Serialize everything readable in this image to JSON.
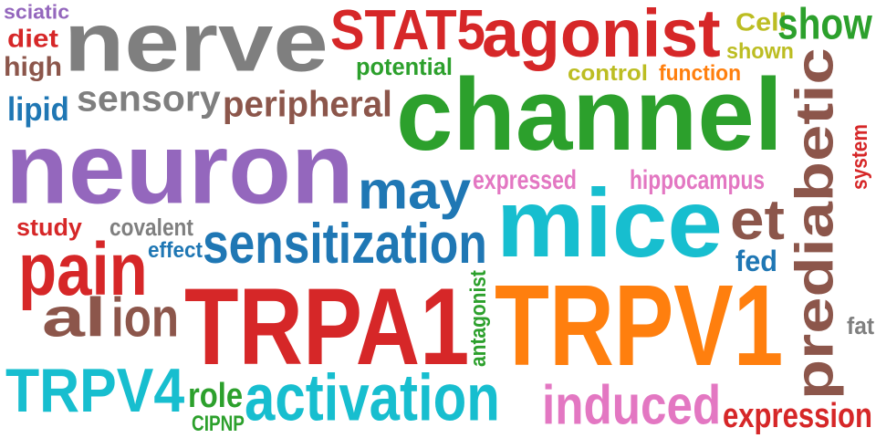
{
  "colors": {
    "red": "#d62728",
    "gray": "#7f7f7f",
    "green": "#2ca02c",
    "purple": "#9467bd",
    "blue": "#1f77b4",
    "cyan": "#17becf",
    "orange": "#ff7f0e",
    "brown": "#8c564b",
    "pink": "#e377c2",
    "olive": "#bcbd22"
  },
  "words": [
    {
      "text": "sciatic",
      "color": "#9467bd"
    },
    {
      "text": "diet",
      "color": "#d62728"
    },
    {
      "text": "high",
      "color": "#8c564b"
    },
    {
      "text": "nerve",
      "color": "#7f7f7f"
    },
    {
      "text": "STAT5",
      "color": "#d62728"
    },
    {
      "text": "agonist",
      "color": "#d62728"
    },
    {
      "text": "Cell",
      "color": "#bcbd22"
    },
    {
      "text": "show",
      "color": "#2ca02c"
    },
    {
      "text": "shown",
      "color": "#bcbd22"
    },
    {
      "text": "potential",
      "color": "#2ca02c"
    },
    {
      "text": "control",
      "color": "#bcbd22"
    },
    {
      "text": "function",
      "color": "#ff7f0e"
    },
    {
      "text": "sensory",
      "color": "#7f7f7f"
    },
    {
      "text": "lipid",
      "color": "#1f77b4"
    },
    {
      "text": "peripheral",
      "color": "#8c564b"
    },
    {
      "text": "channel",
      "color": "#2ca02c"
    },
    {
      "text": "prediabetic",
      "color": "#8c564b"
    },
    {
      "text": "neuron",
      "color": "#9467bd"
    },
    {
      "text": "may",
      "color": "#1f77b4"
    },
    {
      "text": "expressed",
      "color": "#e377c2"
    },
    {
      "text": "hippocampus",
      "color": "#e377c2"
    },
    {
      "text": "system",
      "color": "#d62728"
    },
    {
      "text": "study",
      "color": "#d62728"
    },
    {
      "text": "covalent",
      "color": "#7f7f7f"
    },
    {
      "text": "mice",
      "color": "#17becf"
    },
    {
      "text": "et",
      "color": "#8c564b"
    },
    {
      "text": "pain",
      "color": "#d62728"
    },
    {
      "text": "effect",
      "color": "#1f77b4"
    },
    {
      "text": "sensitization",
      "color": "#1f77b4"
    },
    {
      "text": "fed",
      "color": "#1f77b4"
    },
    {
      "text": "al",
      "color": "#8c564b"
    },
    {
      "text": "ion",
      "color": "#8c564b"
    },
    {
      "text": "TRPA1",
      "color": "#d62728"
    },
    {
      "text": "antagonist",
      "color": "#2ca02c"
    },
    {
      "text": "TRPV1",
      "color": "#ff7f0e"
    },
    {
      "text": "fat",
      "color": "#7f7f7f"
    },
    {
      "text": "TRPV4",
      "color": "#17becf"
    },
    {
      "text": "role",
      "color": "#2ca02c"
    },
    {
      "text": "activation",
      "color": "#17becf"
    },
    {
      "text": "induced",
      "color": "#e377c2"
    },
    {
      "text": "expression",
      "color": "#d62728"
    },
    {
      "text": "CIPNP",
      "color": "#2ca02c"
    }
  ]
}
